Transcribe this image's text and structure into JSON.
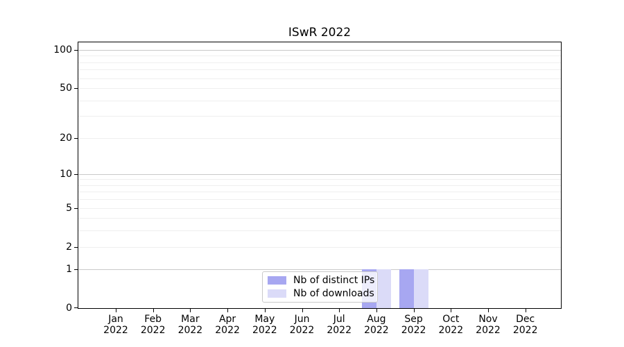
{
  "chart_data": {
    "type": "bar",
    "title": "ISwR 2022",
    "categories": [
      "Jan 2022",
      "Feb 2022",
      "Mar 2022",
      "Apr 2022",
      "May 2022",
      "Jun 2022",
      "Jul 2022",
      "Aug 2022",
      "Sep 2022",
      "Oct 2022",
      "Nov 2022",
      "Dec 2022"
    ],
    "month_labels": [
      "Jan",
      "Feb",
      "Mar",
      "Apr",
      "May",
      "Jun",
      "Jul",
      "Aug",
      "Sep",
      "Oct",
      "Nov",
      "Dec"
    ],
    "year_label": "2022",
    "series": [
      {
        "name": "Nb of distinct IPs",
        "color": "#a7a7f1",
        "values": [
          0,
          0,
          0,
          0,
          0,
          0,
          0,
          1,
          1,
          0,
          0,
          0
        ]
      },
      {
        "name": "Nb of downloads",
        "color": "#dbdbf8",
        "values": [
          0,
          0,
          0,
          0,
          0,
          0,
          0,
          1,
          1,
          0,
          0,
          0
        ]
      }
    ],
    "yscale": "log1p",
    "ylim": [
      0,
      115
    ],
    "ytick_values": [
      0,
      1,
      2,
      5,
      10,
      20,
      50,
      100
    ],
    "ytick_labels": [
      "0",
      "1",
      "2",
      "5",
      "10",
      "20",
      "50",
      "100"
    ],
    "grid_major_values": [
      1,
      10,
      100
    ],
    "grid_minor_values": [
      2,
      3,
      4,
      5,
      6,
      7,
      8,
      9,
      20,
      30,
      40,
      50,
      60,
      70,
      80,
      90
    ],
    "grid": true,
    "legend_position": "lower center"
  },
  "legend": {
    "items": [
      {
        "label": "Nb of distinct IPs",
        "color": "#a7a7f1"
      },
      {
        "label": "Nb of downloads",
        "color": "#dbdbf8"
      }
    ]
  },
  "style": {
    "grid_major_color": "#c9c9c9",
    "grid_minor_color": "#efefef",
    "axis_color": "#000000",
    "background": "#ffffff"
  }
}
